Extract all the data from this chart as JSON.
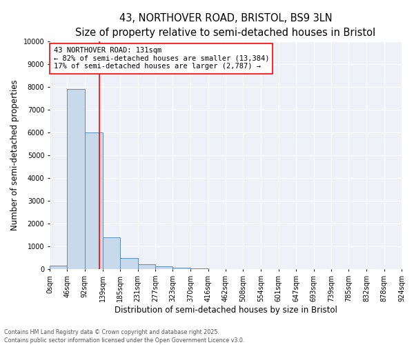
{
  "title": "43, NORTHOVER ROAD, BRISTOL, BS9 3LN",
  "subtitle": "Size of property relative to semi-detached houses in Bristol",
  "xlabel": "Distribution of semi-detached houses by size in Bristol",
  "ylabel": "Number of semi-detached properties",
  "bin_edges": [
    0,
    46,
    92,
    139,
    185,
    231,
    277,
    323,
    370,
    416,
    462,
    508,
    554,
    601,
    647,
    693,
    739,
    785,
    832,
    878,
    924
  ],
  "bar_heights": [
    150,
    7900,
    6000,
    1400,
    500,
    200,
    120,
    60,
    20,
    5,
    3,
    2,
    1,
    1,
    0,
    0,
    0,
    0,
    0,
    0
  ],
  "bar_color": "#c9d9ec",
  "bar_edge_color": "#5b8db8",
  "vline_x": 131,
  "vline_color": "red",
  "ylim": [
    0,
    10000
  ],
  "yticks": [
    0,
    1000,
    2000,
    3000,
    4000,
    5000,
    6000,
    7000,
    8000,
    9000,
    10000
  ],
  "annotation_title": "43 NORTHOVER ROAD: 131sqm",
  "annotation_line1": "← 82% of semi-detached houses are smaller (13,384)",
  "annotation_line2": "17% of semi-detached houses are larger (2,787) →",
  "annotation_box_color": "red",
  "footer_line1": "Contains HM Land Registry data © Crown copyright and database right 2025.",
  "footer_line2": "Contains public sector information licensed under the Open Government Licence v3.0.",
  "bg_color": "#eef2f8",
  "title_fontsize": 10.5,
  "subtitle_fontsize": 9.5,
  "tick_label_fontsize": 7,
  "axis_label_fontsize": 8.5,
  "annotation_fontsize": 7.5,
  "footer_fontsize": 5.8
}
